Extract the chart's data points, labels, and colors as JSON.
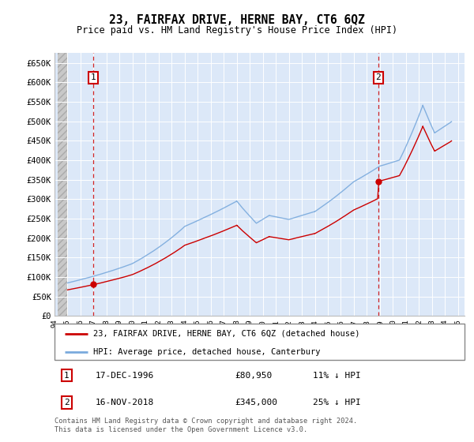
{
  "title": "23, FAIRFAX DRIVE, HERNE BAY, CT6 6QZ",
  "subtitle": "Price paid vs. HM Land Registry's House Price Index (HPI)",
  "background_color": "#ffffff",
  "plot_bg_color": "#dce8f8",
  "grid_color": "#ffffff",
  "ylim": [
    0,
    675000
  ],
  "yticks": [
    0,
    50000,
    100000,
    150000,
    200000,
    250000,
    300000,
    350000,
    400000,
    450000,
    500000,
    550000,
    600000,
    650000
  ],
  "ytick_labels": [
    "£0",
    "£50K",
    "£100K",
    "£150K",
    "£200K",
    "£250K",
    "£300K",
    "£350K",
    "£400K",
    "£450K",
    "£500K",
    "£550K",
    "£600K",
    "£650K"
  ],
  "xlim_start": 1994.25,
  "xlim_end": 2025.5,
  "xtick_years": [
    1994,
    1995,
    1996,
    1997,
    1998,
    1999,
    2000,
    2001,
    2002,
    2003,
    2004,
    2005,
    2006,
    2007,
    2008,
    2009,
    2010,
    2011,
    2012,
    2013,
    2014,
    2015,
    2016,
    2017,
    2018,
    2019,
    2020,
    2021,
    2022,
    2023,
    2024,
    2025
  ],
  "sale1_x": 1996.96,
  "sale1_y": 80950,
  "sale1_label": "1",
  "sale1_date": "17-DEC-1996",
  "sale1_price": "£80,950",
  "sale1_hpi": "11% ↓ HPI",
  "sale2_x": 2018.88,
  "sale2_y": 345000,
  "sale2_label": "2",
  "sale2_date": "16-NOV-2018",
  "sale2_price": "£345,000",
  "sale2_hpi": "25% ↓ HPI",
  "sale_color": "#cc0000",
  "hpi_color": "#7aaadd",
  "vline_color": "#cc0000",
  "legend_label1": "23, FAIRFAX DRIVE, HERNE BAY, CT6 6QZ (detached house)",
  "legend_label2": "HPI: Average price, detached house, Canterbury",
  "footnote": "Contains HM Land Registry data © Crown copyright and database right 2024.\nThis data is licensed under the Open Government Licence v3.0.",
  "hatch_end": 1995.0
}
